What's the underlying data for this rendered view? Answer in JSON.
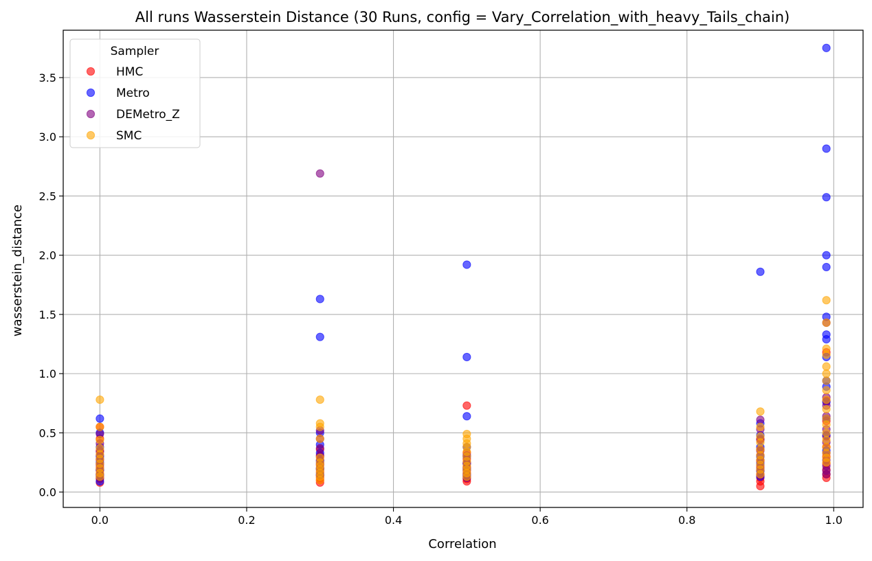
{
  "chart_data": {
    "type": "scatter",
    "title": "All runs Wasserstein Distance (30 Runs, config = Vary_Correlation_with_heavy_Tails_chain)",
    "xlabel": "Correlation",
    "ylabel": "wasserstein_distance",
    "xlim": [
      -0.05,
      1.04
    ],
    "ylim": [
      -0.13,
      3.9
    ],
    "xticks": [
      0.0,
      0.2,
      0.4,
      0.6,
      0.8,
      1.0
    ],
    "xtick_labels": [
      "0.0",
      "0.2",
      "0.4",
      "0.6",
      "0.8",
      "1.0"
    ],
    "yticks": [
      0.0,
      0.5,
      1.0,
      1.5,
      2.0,
      2.5,
      3.0,
      3.5
    ],
    "ytick_labels": [
      "0.0",
      "0.5",
      "1.0",
      "1.5",
      "2.0",
      "2.5",
      "3.0",
      "3.5"
    ],
    "grid": true,
    "legend": {
      "title": "Sampler",
      "position": "top-left"
    },
    "series": [
      {
        "name": "HMC",
        "color": "#ff0000",
        "points": [
          [
            0.0,
            0.08
          ],
          [
            0.0,
            0.11
          ],
          [
            0.0,
            0.13
          ],
          [
            0.0,
            0.15
          ],
          [
            0.0,
            0.18
          ],
          [
            0.0,
            0.21
          ],
          [
            0.0,
            0.24
          ],
          [
            0.0,
            0.27
          ],
          [
            0.0,
            0.31
          ],
          [
            0.0,
            0.35
          ],
          [
            0.0,
            0.45
          ],
          [
            0.0,
            0.55
          ],
          [
            0.3,
            0.08
          ],
          [
            0.3,
            0.1
          ],
          [
            0.3,
            0.12
          ],
          [
            0.3,
            0.14
          ],
          [
            0.3,
            0.17
          ],
          [
            0.3,
            0.2
          ],
          [
            0.3,
            0.23
          ],
          [
            0.3,
            0.27
          ],
          [
            0.3,
            0.31
          ],
          [
            0.3,
            0.36
          ],
          [
            0.5,
            0.09
          ],
          [
            0.5,
            0.11
          ],
          [
            0.5,
            0.13
          ],
          [
            0.5,
            0.15
          ],
          [
            0.5,
            0.18
          ],
          [
            0.5,
            0.21
          ],
          [
            0.5,
            0.24
          ],
          [
            0.5,
            0.28
          ],
          [
            0.5,
            0.33
          ],
          [
            0.5,
            0.73
          ],
          [
            0.9,
            0.05
          ],
          [
            0.9,
            0.09
          ],
          [
            0.9,
            0.12
          ],
          [
            0.9,
            0.15
          ],
          [
            0.9,
            0.18
          ],
          [
            0.9,
            0.22
          ],
          [
            0.9,
            0.26
          ],
          [
            0.9,
            0.31
          ],
          [
            0.9,
            0.36
          ],
          [
            0.9,
            0.45
          ],
          [
            0.99,
            0.12
          ],
          [
            0.99,
            0.15
          ],
          [
            0.99,
            0.19
          ],
          [
            0.99,
            0.24
          ],
          [
            0.99,
            0.3
          ],
          [
            0.99,
            0.38
          ],
          [
            0.99,
            0.47
          ],
          [
            0.99,
            0.6
          ],
          [
            0.99,
            0.77
          ],
          [
            0.99,
            1.18
          ]
        ]
      },
      {
        "name": "Metro",
        "color": "#0000ff",
        "points": [
          [
            0.0,
            0.09
          ],
          [
            0.0,
            0.14
          ],
          [
            0.0,
            0.19
          ],
          [
            0.0,
            0.25
          ],
          [
            0.0,
            0.3
          ],
          [
            0.0,
            0.38
          ],
          [
            0.0,
            0.5
          ],
          [
            0.0,
            0.62
          ],
          [
            0.3,
            0.15
          ],
          [
            0.3,
            0.2
          ],
          [
            0.3,
            0.26
          ],
          [
            0.3,
            0.33
          ],
          [
            0.3,
            0.4
          ],
          [
            0.3,
            0.5
          ],
          [
            0.3,
            1.31
          ],
          [
            0.3,
            1.63
          ],
          [
            0.5,
            0.14
          ],
          [
            0.5,
            0.19
          ],
          [
            0.5,
            0.24
          ],
          [
            0.5,
            0.3
          ],
          [
            0.5,
            0.38
          ],
          [
            0.5,
            0.64
          ],
          [
            0.5,
            1.14
          ],
          [
            0.5,
            1.92
          ],
          [
            0.9,
            0.13
          ],
          [
            0.9,
            0.18
          ],
          [
            0.9,
            0.24
          ],
          [
            0.9,
            0.3
          ],
          [
            0.9,
            0.38
          ],
          [
            0.9,
            0.48
          ],
          [
            0.9,
            0.58
          ],
          [
            0.9,
            1.86
          ],
          [
            0.99,
            0.35
          ],
          [
            0.99,
            0.48
          ],
          [
            0.99,
            0.62
          ],
          [
            0.99,
            0.76
          ],
          [
            0.99,
            0.89
          ],
          [
            0.99,
            0.94
          ],
          [
            0.99,
            1.14
          ],
          [
            0.99,
            1.29
          ],
          [
            0.99,
            1.33
          ],
          [
            0.99,
            1.48
          ],
          [
            0.99,
            1.9
          ],
          [
            0.99,
            2.0
          ],
          [
            0.99,
            2.49
          ],
          [
            0.99,
            2.9
          ],
          [
            0.99,
            3.75
          ]
        ]
      },
      {
        "name": "DEMetro_Z",
        "color": "#800080",
        "points": [
          [
            0.0,
            0.12
          ],
          [
            0.0,
            0.15
          ],
          [
            0.0,
            0.19
          ],
          [
            0.0,
            0.23
          ],
          [
            0.0,
            0.28
          ],
          [
            0.0,
            0.34
          ],
          [
            0.0,
            0.41
          ],
          [
            0.0,
            0.49
          ],
          [
            0.3,
            0.14
          ],
          [
            0.3,
            0.19
          ],
          [
            0.3,
            0.24
          ],
          [
            0.3,
            0.3
          ],
          [
            0.3,
            0.37
          ],
          [
            0.3,
            0.45
          ],
          [
            0.3,
            0.52
          ],
          [
            0.3,
            2.69
          ],
          [
            0.5,
            0.12
          ],
          [
            0.5,
            0.16
          ],
          [
            0.5,
            0.2
          ],
          [
            0.5,
            0.25
          ],
          [
            0.5,
            0.31
          ],
          [
            0.9,
            0.14
          ],
          [
            0.9,
            0.2
          ],
          [
            0.9,
            0.27
          ],
          [
            0.9,
            0.35
          ],
          [
            0.9,
            0.44
          ],
          [
            0.9,
            0.53
          ],
          [
            0.9,
            0.61
          ],
          [
            0.99,
            0.15
          ],
          [
            0.99,
            0.18
          ],
          [
            0.99,
            0.22
          ],
          [
            0.99,
            0.27
          ],
          [
            0.99,
            0.33
          ],
          [
            0.99,
            0.42
          ],
          [
            0.99,
            0.53
          ],
          [
            0.99,
            0.64
          ],
          [
            0.99,
            0.73
          ],
          [
            0.99,
            0.8
          ],
          [
            0.99,
            1.43
          ]
        ]
      },
      {
        "name": "SMC",
        "color": "#ffa500",
        "points": [
          [
            0.0,
            0.13
          ],
          [
            0.0,
            0.16
          ],
          [
            0.0,
            0.2
          ],
          [
            0.0,
            0.24
          ],
          [
            0.0,
            0.28
          ],
          [
            0.0,
            0.32
          ],
          [
            0.0,
            0.37
          ],
          [
            0.0,
            0.44
          ],
          [
            0.0,
            0.55
          ],
          [
            0.0,
            0.78
          ],
          [
            0.3,
            0.1
          ],
          [
            0.3,
            0.13
          ],
          [
            0.3,
            0.16
          ],
          [
            0.3,
            0.19
          ],
          [
            0.3,
            0.22
          ],
          [
            0.3,
            0.25
          ],
          [
            0.3,
            0.29
          ],
          [
            0.3,
            0.45
          ],
          [
            0.3,
            0.55
          ],
          [
            0.3,
            0.58
          ],
          [
            0.3,
            0.78
          ],
          [
            0.5,
            0.13
          ],
          [
            0.5,
            0.16
          ],
          [
            0.5,
            0.19
          ],
          [
            0.5,
            0.22
          ],
          [
            0.5,
            0.26
          ],
          [
            0.5,
            0.3
          ],
          [
            0.5,
            0.34
          ],
          [
            0.5,
            0.38
          ],
          [
            0.5,
            0.41
          ],
          [
            0.5,
            0.45
          ],
          [
            0.5,
            0.49
          ],
          [
            0.9,
            0.15
          ],
          [
            0.9,
            0.19
          ],
          [
            0.9,
            0.23
          ],
          [
            0.9,
            0.27
          ],
          [
            0.9,
            0.31
          ],
          [
            0.9,
            0.36
          ],
          [
            0.9,
            0.42
          ],
          [
            0.9,
            0.47
          ],
          [
            0.9,
            0.55
          ],
          [
            0.9,
            0.68
          ],
          [
            0.99,
            0.25
          ],
          [
            0.99,
            0.29
          ],
          [
            0.99,
            0.33
          ],
          [
            0.99,
            0.38
          ],
          [
            0.99,
            0.44
          ],
          [
            0.99,
            0.5
          ],
          [
            0.99,
            0.57
          ],
          [
            0.99,
            0.62
          ],
          [
            0.99,
            0.7
          ],
          [
            0.99,
            0.78
          ],
          [
            0.99,
            0.86
          ],
          [
            0.99,
            0.94
          ],
          [
            0.99,
            1.0
          ],
          [
            0.99,
            1.06
          ],
          [
            0.99,
            1.16
          ],
          [
            0.99,
            1.21
          ],
          [
            0.99,
            1.43
          ],
          [
            0.99,
            1.62
          ]
        ]
      }
    ]
  }
}
